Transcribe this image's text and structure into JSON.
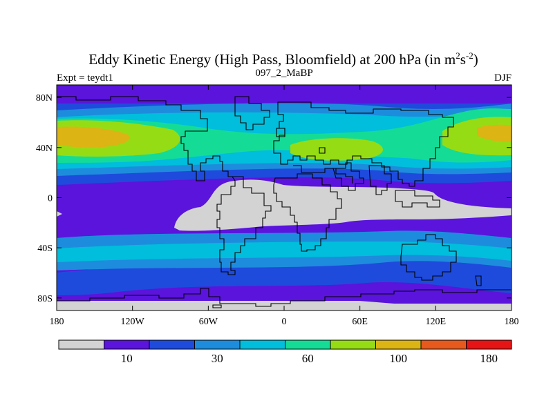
{
  "chart_data": {
    "type": "heatmap",
    "title": {
      "prefix": "Eddy Kinetic Energy (High Pass, Bloomfield) at 200 hPa (in m",
      "sup1": "2",
      "mid": "s",
      "sup2": "-2",
      "suffix": ")"
    },
    "subtitle_left": "Expt = teydt1",
    "subtitle_center": "097_2_MaBP",
    "subtitle_right": "DJF",
    "x_range": [
      -180,
      180
    ],
    "y_range": [
      -90,
      90
    ],
    "x_ticks": [
      {
        "value": -180,
        "label": "180"
      },
      {
        "value": -120,
        "label": "120W"
      },
      {
        "value": -60,
        "label": "60W"
      },
      {
        "value": 0,
        "label": "0"
      },
      {
        "value": 60,
        "label": "60E"
      },
      {
        "value": 120,
        "label": "120E"
      },
      {
        "value": 180,
        "label": "180"
      }
    ],
    "y_ticks": [
      {
        "value": 80,
        "label": "80N"
      },
      {
        "value": 40,
        "label": "40N"
      },
      {
        "value": 0,
        "label": "0"
      },
      {
        "value": -40,
        "label": "40S"
      },
      {
        "value": -80,
        "label": "80S"
      }
    ],
    "levels": [
      {
        "color": "#d3d3d3"
      },
      {
        "color": "#5a14dc"
      },
      {
        "color": "#1e4bdc"
      },
      {
        "color": "#1e8cdc"
      },
      {
        "color": "#00bedc"
      },
      {
        "color": "#14dc96"
      },
      {
        "color": "#96dc14"
      },
      {
        "color": "#dcb414"
      },
      {
        "color": "#e65a1e"
      },
      {
        "color": "#e61414"
      }
    ],
    "colorbar_labels": [
      {
        "boundary": 1,
        "label": "10"
      },
      {
        "boundary": 3,
        "label": "30"
      },
      {
        "boundary": 5,
        "label": "60"
      },
      {
        "boundary": 7,
        "label": "100"
      },
      {
        "boundary": 9,
        "label": "180"
      }
    ]
  }
}
